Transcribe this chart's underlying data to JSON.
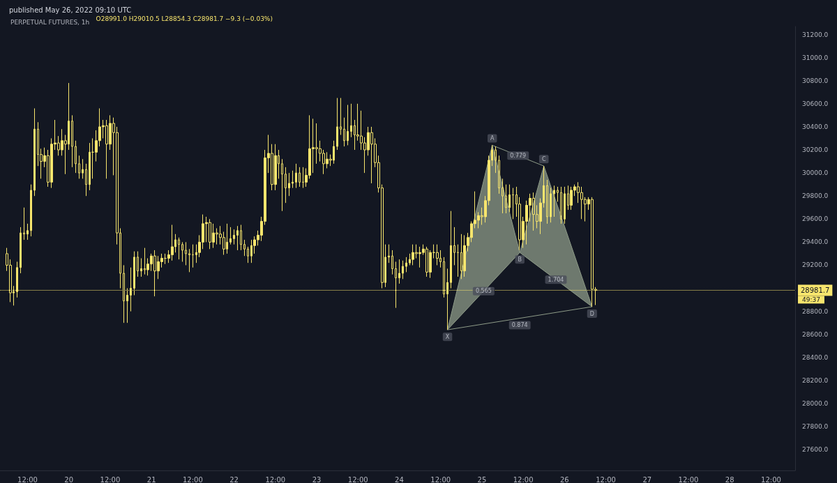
{
  "chart_data": {
    "type": "candlestick",
    "title": "PERPETUAL FUTURES, 1h",
    "subtitle": "published May 26, 2022 09:10 UTC",
    "annotations": [
      "O28991.0 H29010.5 L28854.3 C28981.7 −9.3 (−0.03%)",
      "49:37",
      {
        "text": "X",
        "x": "2022-05-24T14:00",
        "y": 28640
      },
      {
        "text": "A",
        "x": "2022-05-25T03:00",
        "y": 30240
      },
      {
        "text": "B",
        "x": "2022-05-25T11:00",
        "y": 29310
      },
      {
        "text": "C",
        "x": "2022-05-25T18:00",
        "y": 30060
      },
      {
        "text": "D",
        "x": "2022-05-26T08:00",
        "y": 28840
      },
      {
        "text": "0.779",
        "x": "2022-05-25T10:30",
        "y": 30150
      },
      {
        "text": "0.565",
        "x": "2022-05-25T00:30",
        "y": 28975
      },
      {
        "text": "1.704",
        "x": "2022-05-25T21:30",
        "y": 29075
      },
      {
        "text": "0.874",
        "x": "2022-05-25T11:00",
        "y": 28740
      }
    ],
    "x": [
      "2022-05-19T06:00",
      "2022-05-19T07:00",
      "2022-05-19T08:00",
      "2022-05-19T09:00",
      "2022-05-19T10:00",
      "2022-05-19T11:00",
      "2022-05-19T12:00",
      "2022-05-19T13:00",
      "2022-05-19T14:00",
      "2022-05-19T15:00",
      "2022-05-19T16:00",
      "2022-05-19T17:00",
      "2022-05-19T18:00",
      "2022-05-19T19:00",
      "2022-05-19T20:00",
      "2022-05-19T21:00",
      "2022-05-19T22:00",
      "2022-05-19T23:00",
      "2022-05-20T00:00",
      "2022-05-20T01:00",
      "2022-05-20T02:00",
      "2022-05-20T03:00",
      "2022-05-20T04:00",
      "2022-05-20T05:00",
      "2022-05-20T06:00",
      "2022-05-20T07:00",
      "2022-05-20T08:00",
      "2022-05-20T09:00",
      "2022-05-20T10:00",
      "2022-05-20T11:00",
      "2022-05-20T12:00",
      "2022-05-20T13:00",
      "2022-05-20T14:00",
      "2022-05-20T15:00",
      "2022-05-20T16:00",
      "2022-05-20T17:00",
      "2022-05-20T18:00",
      "2022-05-20T19:00",
      "2022-05-20T20:00",
      "2022-05-20T21:00",
      "2022-05-20T22:00",
      "2022-05-20T23:00",
      "2022-05-21T00:00",
      "2022-05-21T01:00",
      "2022-05-21T02:00",
      "2022-05-21T03:00",
      "2022-05-21T04:00",
      "2022-05-21T05:00",
      "2022-05-21T06:00",
      "2022-05-21T07:00",
      "2022-05-21T08:00",
      "2022-05-21T09:00",
      "2022-05-21T10:00",
      "2022-05-21T11:00",
      "2022-05-21T12:00",
      "2022-05-21T13:00",
      "2022-05-21T14:00",
      "2022-05-21T15:00",
      "2022-05-21T16:00",
      "2022-05-21T17:00",
      "2022-05-21T18:00",
      "2022-05-21T19:00",
      "2022-05-21T20:00",
      "2022-05-21T21:00",
      "2022-05-21T22:00",
      "2022-05-21T23:00",
      "2022-05-22T00:00",
      "2022-05-22T01:00",
      "2022-05-22T02:00",
      "2022-05-22T03:00",
      "2022-05-22T04:00",
      "2022-05-22T05:00",
      "2022-05-22T06:00",
      "2022-05-22T07:00",
      "2022-05-22T08:00",
      "2022-05-22T09:00",
      "2022-05-22T10:00",
      "2022-05-22T11:00",
      "2022-05-22T12:00",
      "2022-05-22T13:00",
      "2022-05-22T14:00",
      "2022-05-22T15:00",
      "2022-05-22T16:00",
      "2022-05-22T17:00",
      "2022-05-22T18:00",
      "2022-05-22T19:00",
      "2022-05-22T20:00",
      "2022-05-22T21:00",
      "2022-05-22T22:00",
      "2022-05-22T23:00",
      "2022-05-23T00:00",
      "2022-05-23T01:00",
      "2022-05-23T02:00",
      "2022-05-23T03:00",
      "2022-05-23T04:00",
      "2022-05-23T05:00",
      "2022-05-23T06:00",
      "2022-05-23T07:00",
      "2022-05-23T08:00",
      "2022-05-23T09:00",
      "2022-05-23T10:00",
      "2022-05-23T11:00",
      "2022-05-23T12:00",
      "2022-05-23T13:00",
      "2022-05-23T14:00",
      "2022-05-23T15:00",
      "2022-05-23T16:00",
      "2022-05-23T17:00",
      "2022-05-23T18:00",
      "2022-05-23T19:00",
      "2022-05-23T20:00",
      "2022-05-23T21:00",
      "2022-05-23T22:00",
      "2022-05-23T23:00",
      "2022-05-24T00:00",
      "2022-05-24T01:00",
      "2022-05-24T02:00",
      "2022-05-24T03:00",
      "2022-05-24T04:00",
      "2022-05-24T05:00",
      "2022-05-24T06:00",
      "2022-05-24T07:00",
      "2022-05-24T08:00",
      "2022-05-24T09:00",
      "2022-05-24T10:00",
      "2022-05-24T11:00",
      "2022-05-24T12:00",
      "2022-05-24T13:00",
      "2022-05-24T14:00",
      "2022-05-24T15:00",
      "2022-05-24T16:00",
      "2022-05-24T17:00",
      "2022-05-24T18:00",
      "2022-05-24T19:00",
      "2022-05-24T20:00",
      "2022-05-24T21:00",
      "2022-05-24T22:00",
      "2022-05-24T23:00",
      "2022-05-25T00:00",
      "2022-05-25T01:00",
      "2022-05-25T02:00",
      "2022-05-25T03:00",
      "2022-05-25T04:00",
      "2022-05-25T05:00",
      "2022-05-25T06:00",
      "2022-05-25T07:00",
      "2022-05-25T08:00",
      "2022-05-25T09:00",
      "2022-05-25T10:00",
      "2022-05-25T11:00",
      "2022-05-25T12:00",
      "2022-05-25T13:00",
      "2022-05-25T14:00",
      "2022-05-25T15:00",
      "2022-05-25T16:00",
      "2022-05-25T17:00",
      "2022-05-25T18:00",
      "2022-05-25T19:00",
      "2022-05-25T20:00",
      "2022-05-25T21:00",
      "2022-05-25T22:00",
      "2022-05-25T23:00",
      "2022-05-26T00:00",
      "2022-05-26T01:00",
      "2022-05-26T02:00",
      "2022-05-26T03:00",
      "2022-05-26T04:00",
      "2022-05-26T05:00",
      "2022-05-26T06:00",
      "2022-05-26T07:00",
      "2022-05-26T08:00",
      "2022-05-26T09:00"
    ],
    "series": [
      {
        "color": "#f7e56d",
        "ohlc": [
          [
            29300,
            29350,
            29150,
            29200
          ],
          [
            29200,
            29250,
            28880,
            28960
          ],
          [
            28960,
            29020,
            28850,
            28970
          ],
          [
            28970,
            29230,
            28920,
            29180
          ],
          [
            29180,
            29530,
            29130,
            29480
          ],
          [
            29480,
            29700,
            29420,
            29470
          ],
          [
            29470,
            29560,
            29420,
            29500
          ],
          [
            29500,
            29900,
            29450,
            29850
          ],
          [
            29850,
            30560,
            29800,
            30380
          ],
          [
            30380,
            30440,
            30060,
            30160
          ],
          [
            30160,
            30210,
            29950,
            30100
          ],
          [
            30100,
            30220,
            30050,
            30150
          ],
          [
            30150,
            30200,
            29880,
            29920
          ],
          [
            29920,
            30300,
            29870,
            30250
          ],
          [
            30250,
            30460,
            30200,
            30260
          ],
          [
            30260,
            30320,
            30150,
            30200
          ],
          [
            30200,
            30380,
            30150,
            30280
          ],
          [
            30280,
            30330,
            29990,
            30250
          ],
          [
            30250,
            30780,
            30200,
            30450
          ],
          [
            30450,
            30500,
            30050,
            30230
          ],
          [
            30230,
            30280,
            30000,
            30080
          ],
          [
            30080,
            30150,
            29950,
            30000
          ],
          [
            30000,
            30120,
            29950,
            30030
          ],
          [
            30030,
            30080,
            29800,
            29900
          ],
          [
            29900,
            30260,
            29850,
            30180
          ],
          [
            30180,
            30300,
            29950,
            30180
          ],
          [
            30180,
            30370,
            30100,
            30280
          ],
          [
            30280,
            30560,
            30230,
            30400
          ],
          [
            30400,
            30460,
            30300,
            30410
          ],
          [
            30410,
            30460,
            29950,
            30250
          ],
          [
            30250,
            30500,
            30200,
            30430
          ],
          [
            30430,
            30480,
            29980,
            30350
          ],
          [
            30350,
            30400,
            29380,
            29480
          ],
          [
            29480,
            29520,
            29000,
            29130
          ],
          [
            29130,
            29200,
            28700,
            28890
          ],
          [
            28890,
            29000,
            28700,
            28940
          ],
          [
            28940,
            29180,
            28800,
            29000
          ],
          [
            29000,
            29320,
            28940,
            29270
          ],
          [
            29270,
            29320,
            29100,
            29150
          ],
          [
            29150,
            29260,
            29100,
            29170
          ],
          [
            29170,
            29350,
            29120,
            29160
          ],
          [
            29160,
            29260,
            29110,
            29210
          ],
          [
            29210,
            29300,
            29150,
            29280
          ],
          [
            29280,
            29330,
            28930,
            29150
          ],
          [
            29150,
            29280,
            29080,
            29230
          ],
          [
            29230,
            29300,
            29180,
            29260
          ],
          [
            29260,
            29300,
            29210,
            29260
          ],
          [
            29260,
            29330,
            29220,
            29290
          ],
          [
            29290,
            29550,
            29240,
            29360
          ],
          [
            29360,
            29470,
            29310,
            29420
          ],
          [
            29420,
            29440,
            29250,
            29380
          ],
          [
            29380,
            29400,
            29230,
            29330
          ],
          [
            29330,
            29400,
            29200,
            29300
          ],
          [
            29300,
            29340,
            29140,
            29290
          ],
          [
            29290,
            29380,
            29180,
            29290
          ],
          [
            29290,
            29380,
            29220,
            29310
          ],
          [
            29310,
            29460,
            29270,
            29400
          ],
          [
            29400,
            29640,
            29340,
            29560
          ],
          [
            29560,
            29620,
            29400,
            29570
          ],
          [
            29570,
            29600,
            29340,
            29400
          ],
          [
            29400,
            29560,
            29350,
            29480
          ],
          [
            29480,
            29520,
            29380,
            29470
          ],
          [
            29470,
            29540,
            29380,
            29440
          ],
          [
            29440,
            29490,
            29290,
            29340
          ],
          [
            29340,
            29560,
            29300,
            29400
          ],
          [
            29400,
            29530,
            29380,
            29430
          ],
          [
            29430,
            29510,
            29380,
            29460
          ],
          [
            29460,
            29540,
            29330,
            29500
          ],
          [
            29500,
            29550,
            29330,
            29380
          ],
          [
            29380,
            29420,
            29280,
            29340
          ],
          [
            29340,
            29360,
            29220,
            29280
          ],
          [
            29280,
            29420,
            29220,
            29370
          ],
          [
            29370,
            29450,
            29300,
            29420
          ],
          [
            29420,
            29500,
            29370,
            29460
          ],
          [
            29460,
            29620,
            29410,
            29580
          ],
          [
            29580,
            30200,
            29550,
            30130
          ],
          [
            30130,
            30330,
            30000,
            30170
          ],
          [
            30170,
            30250,
            29850,
            29900
          ],
          [
            29900,
            30250,
            29850,
            30150
          ],
          [
            30150,
            30200,
            29950,
            30080
          ],
          [
            30080,
            30120,
            29670,
            29990
          ],
          [
            29990,
            30050,
            29740,
            29870
          ],
          [
            29870,
            30000,
            29800,
            29910
          ],
          [
            29910,
            30020,
            29870,
            29920
          ],
          [
            29920,
            30080,
            29870,
            30000
          ],
          [
            30000,
            30050,
            29880,
            29920
          ],
          [
            29920,
            30050,
            29870,
            29920
          ],
          [
            29920,
            30040,
            29880,
            29980
          ],
          [
            29980,
            30500,
            29950,
            30210
          ],
          [
            30210,
            30470,
            30000,
            30220
          ],
          [
            30220,
            30430,
            30080,
            30210
          ],
          [
            30210,
            30280,
            30100,
            30170
          ],
          [
            30170,
            30200,
            29990,
            30080
          ],
          [
            30080,
            30180,
            30040,
            30120
          ],
          [
            30120,
            30160,
            30060,
            30110
          ],
          [
            30110,
            30280,
            30080,
            30230
          ],
          [
            30230,
            30650,
            30200,
            30400
          ],
          [
            30400,
            30650,
            30330,
            30380
          ],
          [
            30380,
            30480,
            30230,
            30280
          ],
          [
            30280,
            30590,
            30240,
            30360
          ],
          [
            30360,
            30600,
            30310,
            30410
          ],
          [
            30410,
            30460,
            30200,
            30330
          ],
          [
            30330,
            30600,
            30280,
            30320
          ],
          [
            30320,
            30540,
            30200,
            30260
          ],
          [
            30260,
            30310,
            30000,
            30200
          ],
          [
            30200,
            30400,
            30150,
            30350
          ],
          [
            30350,
            30400,
            29910,
            30250
          ],
          [
            30250,
            30300,
            30050,
            30090
          ],
          [
            30090,
            30150,
            29830,
            29870
          ],
          [
            29870,
            29900,
            29000,
            29050
          ],
          [
            29050,
            29380,
            29010,
            29270
          ],
          [
            29270,
            29380,
            29220,
            29280
          ],
          [
            29280,
            29330,
            29120,
            29170
          ],
          [
            29170,
            29230,
            28830,
            29090
          ],
          [
            29090,
            29250,
            29040,
            29130
          ],
          [
            29130,
            29240,
            29080,
            29190
          ],
          [
            29190,
            29270,
            29140,
            29220
          ],
          [
            29220,
            29300,
            29200,
            29250
          ],
          [
            29250,
            29380,
            29200,
            29310
          ],
          [
            29310,
            29380,
            29260,
            29300
          ],
          [
            29300,
            29360,
            29180,
            29310
          ],
          [
            29310,
            29380,
            29290,
            29340
          ],
          [
            29340,
            29360,
            29100,
            29140
          ],
          [
            29140,
            29330,
            29090,
            29310
          ],
          [
            29310,
            29380,
            29260,
            29310
          ],
          [
            29310,
            29380,
            29200,
            29260
          ],
          [
            29260,
            29330,
            29180,
            29230
          ],
          [
            29230,
            29270,
            28920,
            28950
          ],
          [
            28950,
            29170,
            28640,
            29050
          ],
          [
            29050,
            29670,
            29000,
            29370
          ],
          [
            29370,
            29530,
            29200,
            29310
          ],
          [
            29310,
            29380,
            29100,
            29310
          ],
          [
            29310,
            29470,
            29080,
            29150
          ],
          [
            29150,
            29460,
            29100,
            29370
          ],
          [
            29370,
            29480,
            29320,
            29440
          ],
          [
            29440,
            29580,
            29400,
            29560
          ],
          [
            29560,
            29840,
            29520,
            29590
          ],
          [
            29590,
            29660,
            29520,
            29630
          ],
          [
            29630,
            29700,
            29550,
            29620
          ],
          [
            29620,
            29800,
            29570,
            29760
          ],
          [
            29760,
            30150,
            29720,
            30110
          ],
          [
            30110,
            30240,
            30060,
            30200
          ],
          [
            30200,
            30230,
            30000,
            30110
          ],
          [
            30110,
            30150,
            29820,
            29870
          ],
          [
            29870,
            29950,
            29650,
            29800
          ],
          [
            29800,
            29900,
            29650,
            29700
          ],
          [
            29700,
            29900,
            29660,
            29810
          ],
          [
            29810,
            29870,
            29600,
            29810
          ],
          [
            29810,
            29880,
            29620,
            29730
          ],
          [
            29730,
            29790,
            29330,
            29420
          ],
          [
            29420,
            29620,
            29350,
            29580
          ],
          [
            29580,
            29760,
            29380,
            29720
          ],
          [
            29720,
            29820,
            29580,
            29780
          ],
          [
            29780,
            29830,
            29500,
            29640
          ],
          [
            29640,
            29720,
            29520,
            29580
          ],
          [
            29580,
            29780,
            29470,
            29740
          ],
          [
            29740,
            30060,
            29700,
            29890
          ],
          [
            29890,
            29940,
            29560,
            29620
          ],
          [
            29620,
            29870,
            29570,
            29820
          ],
          [
            29820,
            29890,
            29620,
            29850
          ],
          [
            29850,
            29880,
            29750,
            29830
          ],
          [
            29830,
            29880,
            29560,
            29600
          ],
          [
            29600,
            29880,
            29560,
            29820
          ],
          [
            29820,
            29890,
            29680,
            29720
          ],
          [
            29720,
            29880,
            29680,
            29850
          ],
          [
            29850,
            29900,
            29800,
            29880
          ],
          [
            29880,
            29920,
            29740,
            29830
          ],
          [
            29830,
            29880,
            29600,
            29770
          ],
          [
            29770,
            29790,
            29580,
            29730
          ],
          [
            29730,
            29790,
            29680,
            29770
          ],
          [
            29770,
            29790,
            28840,
            28991.0
          ],
          [
            28991.0,
            29010.5,
            28854.3,
            28981.7
          ]
        ]
      },
      {
        "type": "line",
        "color": "#8e9b88",
        "x": [
          "2022-05-24T14:00",
          "2022-05-25T03:00",
          "2022-05-25T11:00",
          "2022-05-25T18:00",
          "2022-05-26T08:00"
        ],
        "values": [
          28640,
          30240,
          29310,
          30060,
          28840
        ]
      },
      {
        "type": "line",
        "color": "#8e9b88",
        "x": [
          "2022-05-24T14:00",
          "2022-05-25T11:00"
        ],
        "values": [
          28640,
          29310
        ]
      },
      {
        "type": "line",
        "color": "#8e9b88",
        "x": [
          "2022-05-25T11:00",
          "2022-05-26T08:00"
        ],
        "values": [
          29310,
          28840
        ]
      },
      {
        "type": "line",
        "color": "#8e9b88",
        "x": [
          "2022-05-24T14:00",
          "2022-05-26T08:00"
        ],
        "values": [
          28640,
          28840
        ]
      },
      {
        "type": "line",
        "color": "#8e9b88",
        "x": [
          "2022-05-25T03:00",
          "2022-05-25T18:00"
        ],
        "values": [
          30240,
          30060
        ]
      }
    ],
    "xlim": [
      "2022-05-19T04:00",
      "2022-05-28T19:00"
    ],
    "xticks": [
      {
        "value": "2022-05-19T12:00",
        "label": "12:00"
      },
      {
        "value": "2022-05-20",
        "label": "20"
      },
      {
        "value": "2022-05-20T12:00",
        "label": "12:00"
      },
      {
        "value": "2022-05-21",
        "label": "21"
      },
      {
        "value": "2022-05-21T12:00",
        "label": "12:00"
      },
      {
        "value": "2022-05-22",
        "label": "22"
      },
      {
        "value": "2022-05-22T12:00",
        "label": "12:00"
      },
      {
        "value": "2022-05-23",
        "label": "23"
      },
      {
        "value": "2022-05-23T12:00",
        "label": "12:00"
      },
      {
        "value": "2022-05-24",
        "label": "24"
      },
      {
        "value": "2022-05-24T12:00",
        "label": "12:00"
      },
      {
        "value": "2022-05-25",
        "label": "25"
      },
      {
        "value": "2022-05-25T12:00",
        "label": "12:00"
      },
      {
        "value": "2022-05-26",
        "label": "26"
      },
      {
        "value": "2022-05-26T12:00",
        "label": "12:00"
      },
      {
        "value": "2022-05-27",
        "label": "27"
      },
      {
        "value": "2022-05-27T12:00",
        "label": "12:00"
      },
      {
        "value": "2022-05-28",
        "label": "28"
      },
      {
        "value": "2022-05-28T12:00",
        "label": "12:00"
      }
    ],
    "ylim": [
      27420,
      31270
    ],
    "yticks": [
      {
        "value": 27600,
        "label": "27600.0"
      },
      {
        "value": 27800,
        "label": "27800.0"
      },
      {
        "value": 28000,
        "label": "28000.0"
      },
      {
        "value": 28200,
        "label": "28200.0"
      },
      {
        "value": 28400,
        "label": "28400.0"
      },
      {
        "value": 28600,
        "label": "28600.0"
      },
      {
        "value": 28800,
        "label": "28800.0"
      },
      {
        "value": 29200,
        "label": "29200.0"
      },
      {
        "value": 29400,
        "label": "29400.0"
      },
      {
        "value": 29600,
        "label": "29600.0"
      },
      {
        "value": 29800,
        "label": "29800.0"
      },
      {
        "value": 30000,
        "label": "30000.0"
      },
      {
        "value": 30200,
        "label": "30200.0"
      },
      {
        "value": 30400,
        "label": "30400.0"
      },
      {
        "value": 30600,
        "label": "30600.0"
      },
      {
        "value": 30800,
        "label": "30800.0"
      },
      {
        "value": 31000,
        "label": "31000.0"
      },
      {
        "value": 31200,
        "label": "31200.0"
      }
    ],
    "ref_lines": [
      {
        "axis": "y",
        "value": 28981.7,
        "label": "28981.7",
        "color": "#f7e56d",
        "line_style": "dotted"
      }
    ],
    "grid": false
  }
}
